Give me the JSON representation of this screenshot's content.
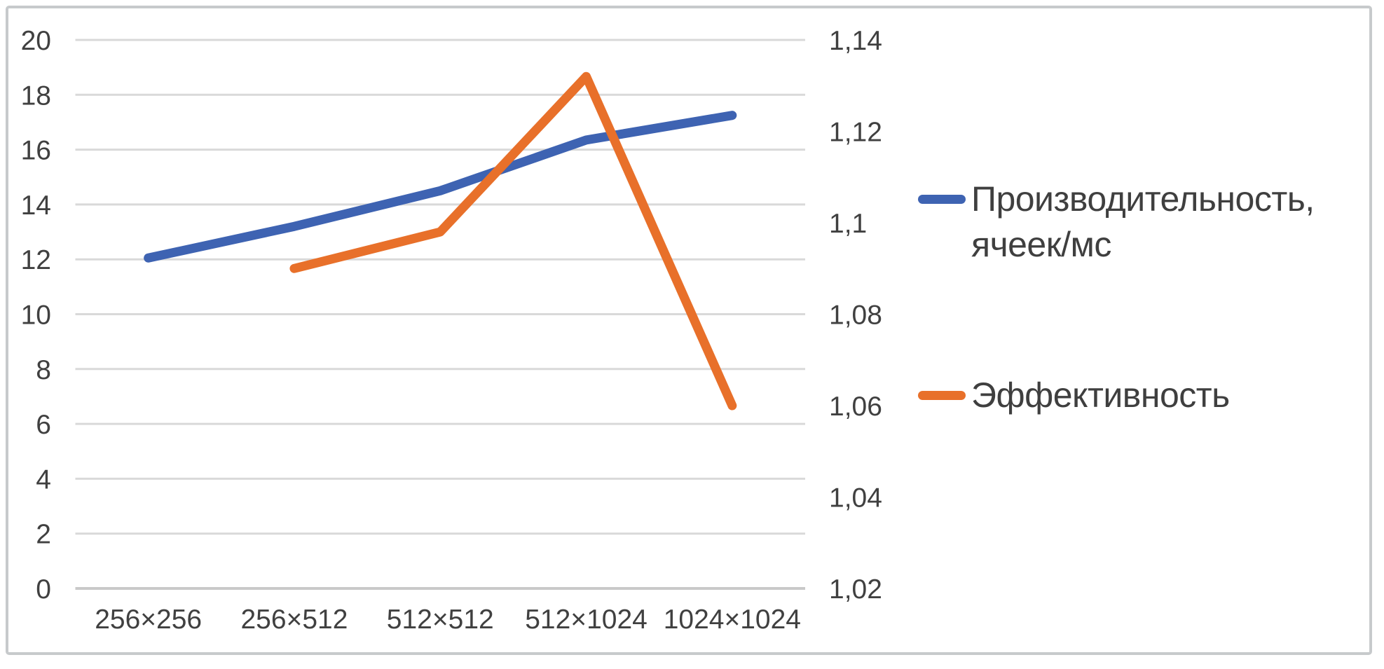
{
  "chart_data": {
    "type": "line",
    "categories": [
      "256×256",
      "256×512",
      "512×512",
      "512×1024",
      "1024×1024"
    ],
    "series": [
      {
        "name": "Производительность, ячеек/мс",
        "axis": "left",
        "color": "#3e63b2",
        "values": [
          12.05,
          13.2,
          14.5,
          16.35,
          17.25
        ]
      },
      {
        "name": "Эффективность",
        "axis": "right",
        "color": "#e8702a",
        "values": [
          null,
          1.09,
          1.098,
          1.132,
          1.06
        ]
      }
    ],
    "left_axis": {
      "min": 0,
      "max": 20,
      "step": 2,
      "labels": [
        "0",
        "2",
        "4",
        "6",
        "8",
        "10",
        "12",
        "14",
        "16",
        "18",
        "20"
      ]
    },
    "right_axis": {
      "min": 1.02,
      "max": 1.14,
      "step": 0.02,
      "labels": [
        "1,02",
        "1,04",
        "1,06",
        "1,08",
        "1,1",
        "1,12",
        "1,14"
      ]
    },
    "grid": true,
    "legend_position": "right",
    "title": ""
  },
  "colors": {
    "gridline": "#d9d9d9",
    "baseline": "#c9c9c9",
    "tick_text": "#404040",
    "frame_border": "#c7cacc",
    "background": "#ffffff"
  }
}
